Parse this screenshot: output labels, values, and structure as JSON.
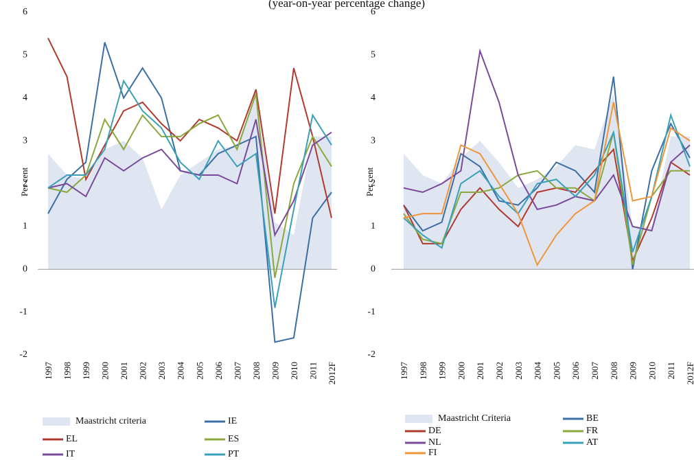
{
  "subtitle": "(year-on-year percentage change)",
  "chart_data": [
    {
      "type": "line",
      "ylabel": "Per cent",
      "categories": [
        "1997",
        "1998",
        "1999",
        "2000",
        "2001",
        "2002",
        "2003",
        "2004",
        "2005",
        "2006",
        "2007",
        "2008",
        "2009",
        "2010",
        "2011",
        "2012F"
      ],
      "ylim": [
        -2,
        6
      ],
      "yticks": [
        -2,
        -1,
        0,
        1,
        2,
        3,
        4,
        5,
        6
      ],
      "series": [
        {
          "name": "Maastricht criteria",
          "type": "area",
          "color": "#dfe5f1",
          "values": [
            2.7,
            2.2,
            2.1,
            2.8,
            3.0,
            2.6,
            1.4,
            2.2,
            2.5,
            2.8,
            2.9,
            4.1,
            1.1,
            0.8,
            3.1,
            3.1
          ]
        },
        {
          "name": "IE",
          "color": "#3a6ea5",
          "values": [
            1.3,
            2.1,
            2.5,
            5.3,
            4.0,
            4.7,
            4.0,
            2.3,
            2.2,
            2.7,
            2.9,
            3.1,
            -1.7,
            -1.6,
            1.2,
            1.8
          ]
        },
        {
          "name": "EL",
          "color": "#b03a2e",
          "values": [
            5.4,
            4.5,
            2.1,
            2.9,
            3.7,
            3.9,
            3.4,
            3.0,
            3.5,
            3.3,
            3.0,
            4.2,
            1.3,
            4.7,
            3.1,
            1.2
          ]
        },
        {
          "name": "ES",
          "color": "#8aa83c",
          "values": [
            1.9,
            1.8,
            2.2,
            3.5,
            2.8,
            3.6,
            3.1,
            3.1,
            3.4,
            3.6,
            2.8,
            4.1,
            -0.2,
            2.0,
            3.1,
            2.4
          ]
        },
        {
          "name": "IT",
          "color": "#7a4a9a",
          "values": [
            1.9,
            2.0,
            1.7,
            2.6,
            2.3,
            2.6,
            2.8,
            2.3,
            2.2,
            2.2,
            2.0,
            3.5,
            0.8,
            1.6,
            2.9,
            3.2
          ]
        },
        {
          "name": "PT",
          "color": "#3aa0b8",
          "values": [
            1.9,
            2.2,
            2.2,
            2.8,
            4.4,
            3.7,
            3.3,
            2.5,
            2.1,
            3.0,
            2.4,
            2.7,
            -0.9,
            1.4,
            3.6,
            2.9
          ]
        }
      ]
    },
    {
      "type": "line",
      "ylabel": "Per cent",
      "categories": [
        "1997",
        "1998",
        "1999",
        "2000",
        "2001",
        "2002",
        "2003",
        "2004",
        "2005",
        "2006",
        "2007",
        "2008",
        "2009",
        "2010",
        "2011",
        "2012F"
      ],
      "ylim": [
        -2,
        6
      ],
      "yticks": [
        -2,
        -1,
        0,
        1,
        2,
        3,
        4,
        5,
        6
      ],
      "series": [
        {
          "name": "Maastricht Criteria",
          "type": "area",
          "color": "#dfe5f1",
          "values": [
            2.7,
            2.2,
            2.0,
            2.6,
            3.0,
            2.5,
            1.9,
            2.1,
            2.4,
            2.9,
            2.8,
            4.1,
            1.0,
            1.0,
            3.1,
            3.1
          ]
        },
        {
          "name": "BE",
          "color": "#3a6ea5",
          "values": [
            1.5,
            0.9,
            1.1,
            2.7,
            2.4,
            1.6,
            1.5,
            1.9,
            2.5,
            2.3,
            1.8,
            4.5,
            0.0,
            2.3,
            3.4,
            2.6
          ]
        },
        {
          "name": "DE",
          "color": "#b03a2e",
          "values": [
            1.5,
            0.6,
            0.6,
            1.4,
            1.9,
            1.4,
            1.0,
            1.8,
            1.9,
            1.8,
            2.3,
            2.8,
            0.2,
            1.2,
            2.5,
            2.2
          ]
        },
        {
          "name": "FR",
          "color": "#8aa83c",
          "values": [
            1.3,
            0.7,
            0.6,
            1.8,
            1.8,
            1.9,
            2.2,
            2.3,
            1.9,
            1.9,
            1.6,
            3.2,
            0.1,
            1.7,
            2.3,
            2.3
          ]
        },
        {
          "name": "NL",
          "color": "#7a4a9a",
          "values": [
            1.9,
            1.8,
            2.0,
            2.3,
            5.1,
            3.9,
            2.2,
            1.4,
            1.5,
            1.7,
            1.6,
            2.2,
            1.0,
            0.9,
            2.5,
            2.9
          ]
        },
        {
          "name": "AT",
          "color": "#3aa0b8",
          "values": [
            1.2,
            0.8,
            0.5,
            2.0,
            2.3,
            1.7,
            1.3,
            2.0,
            2.1,
            1.7,
            2.2,
            3.2,
            0.4,
            1.7,
            3.6,
            2.4
          ]
        },
        {
          "name": "FI",
          "color": "#f0953a",
          "values": [
            1.2,
            1.3,
            1.3,
            2.9,
            2.7,
            2.0,
            1.3,
            0.1,
            0.8,
            1.3,
            1.6,
            3.9,
            1.6,
            1.7,
            3.3,
            3.0
          ]
        }
      ]
    }
  ]
}
